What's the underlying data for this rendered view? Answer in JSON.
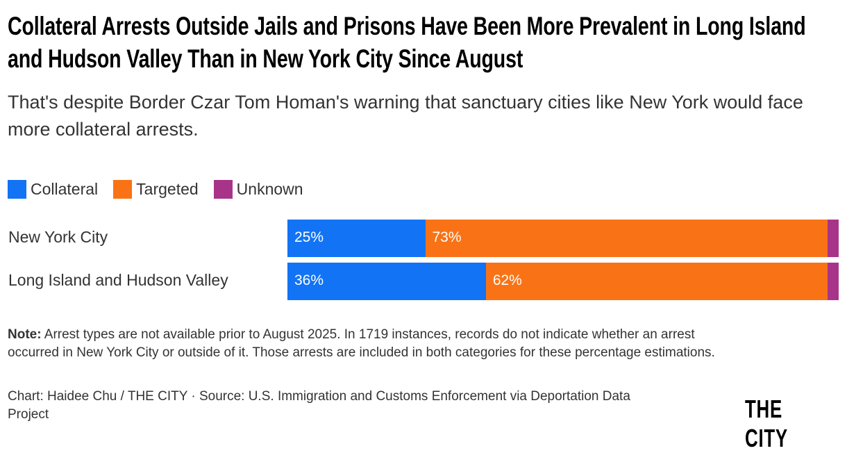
{
  "chart_data": {
    "type": "bar",
    "orientation": "horizontal",
    "stacked": true,
    "title": "Collateral Arrests Outside Jails and Prisons Have Been More Prevalent in Long Island and Hudson Valley Than in New York City Since August",
    "subtitle": "That's despite Border Czar Tom Homan's warning that sanctuary cities like New York would face more collateral arrests.",
    "categories": [
      "New York City",
      "Long Island and Hudson Valley"
    ],
    "series": [
      {
        "name": "Collateral",
        "color": "#1273f5",
        "values": [
          25,
          36
        ],
        "labels": [
          "25%",
          "36%"
        ]
      },
      {
        "name": "Targeted",
        "color": "#f97316",
        "values": [
          73,
          62
        ],
        "labels": [
          "73%",
          "62%"
        ]
      },
      {
        "name": "Unknown",
        "color": "#a8348a",
        "values": [
          2,
          2
        ],
        "labels": [
          "",
          ""
        ]
      }
    ],
    "xlim": [
      0,
      100
    ],
    "unit": "%",
    "legend": "top-left",
    "grid": false
  },
  "note_label": "Note:",
  "note": " Arrest types are not available prior to August 2025. In 1719 instances, records do not indicate whether an arrest occurred in New York City or outside of it. Those arrests are included in both categories for these percentage estimations.",
  "source": "Chart: Haidee Chu / THE CITY · Source: U.S. Immigration and Customs Enforcement via Deportation Data Project",
  "logo": "THE CITY"
}
